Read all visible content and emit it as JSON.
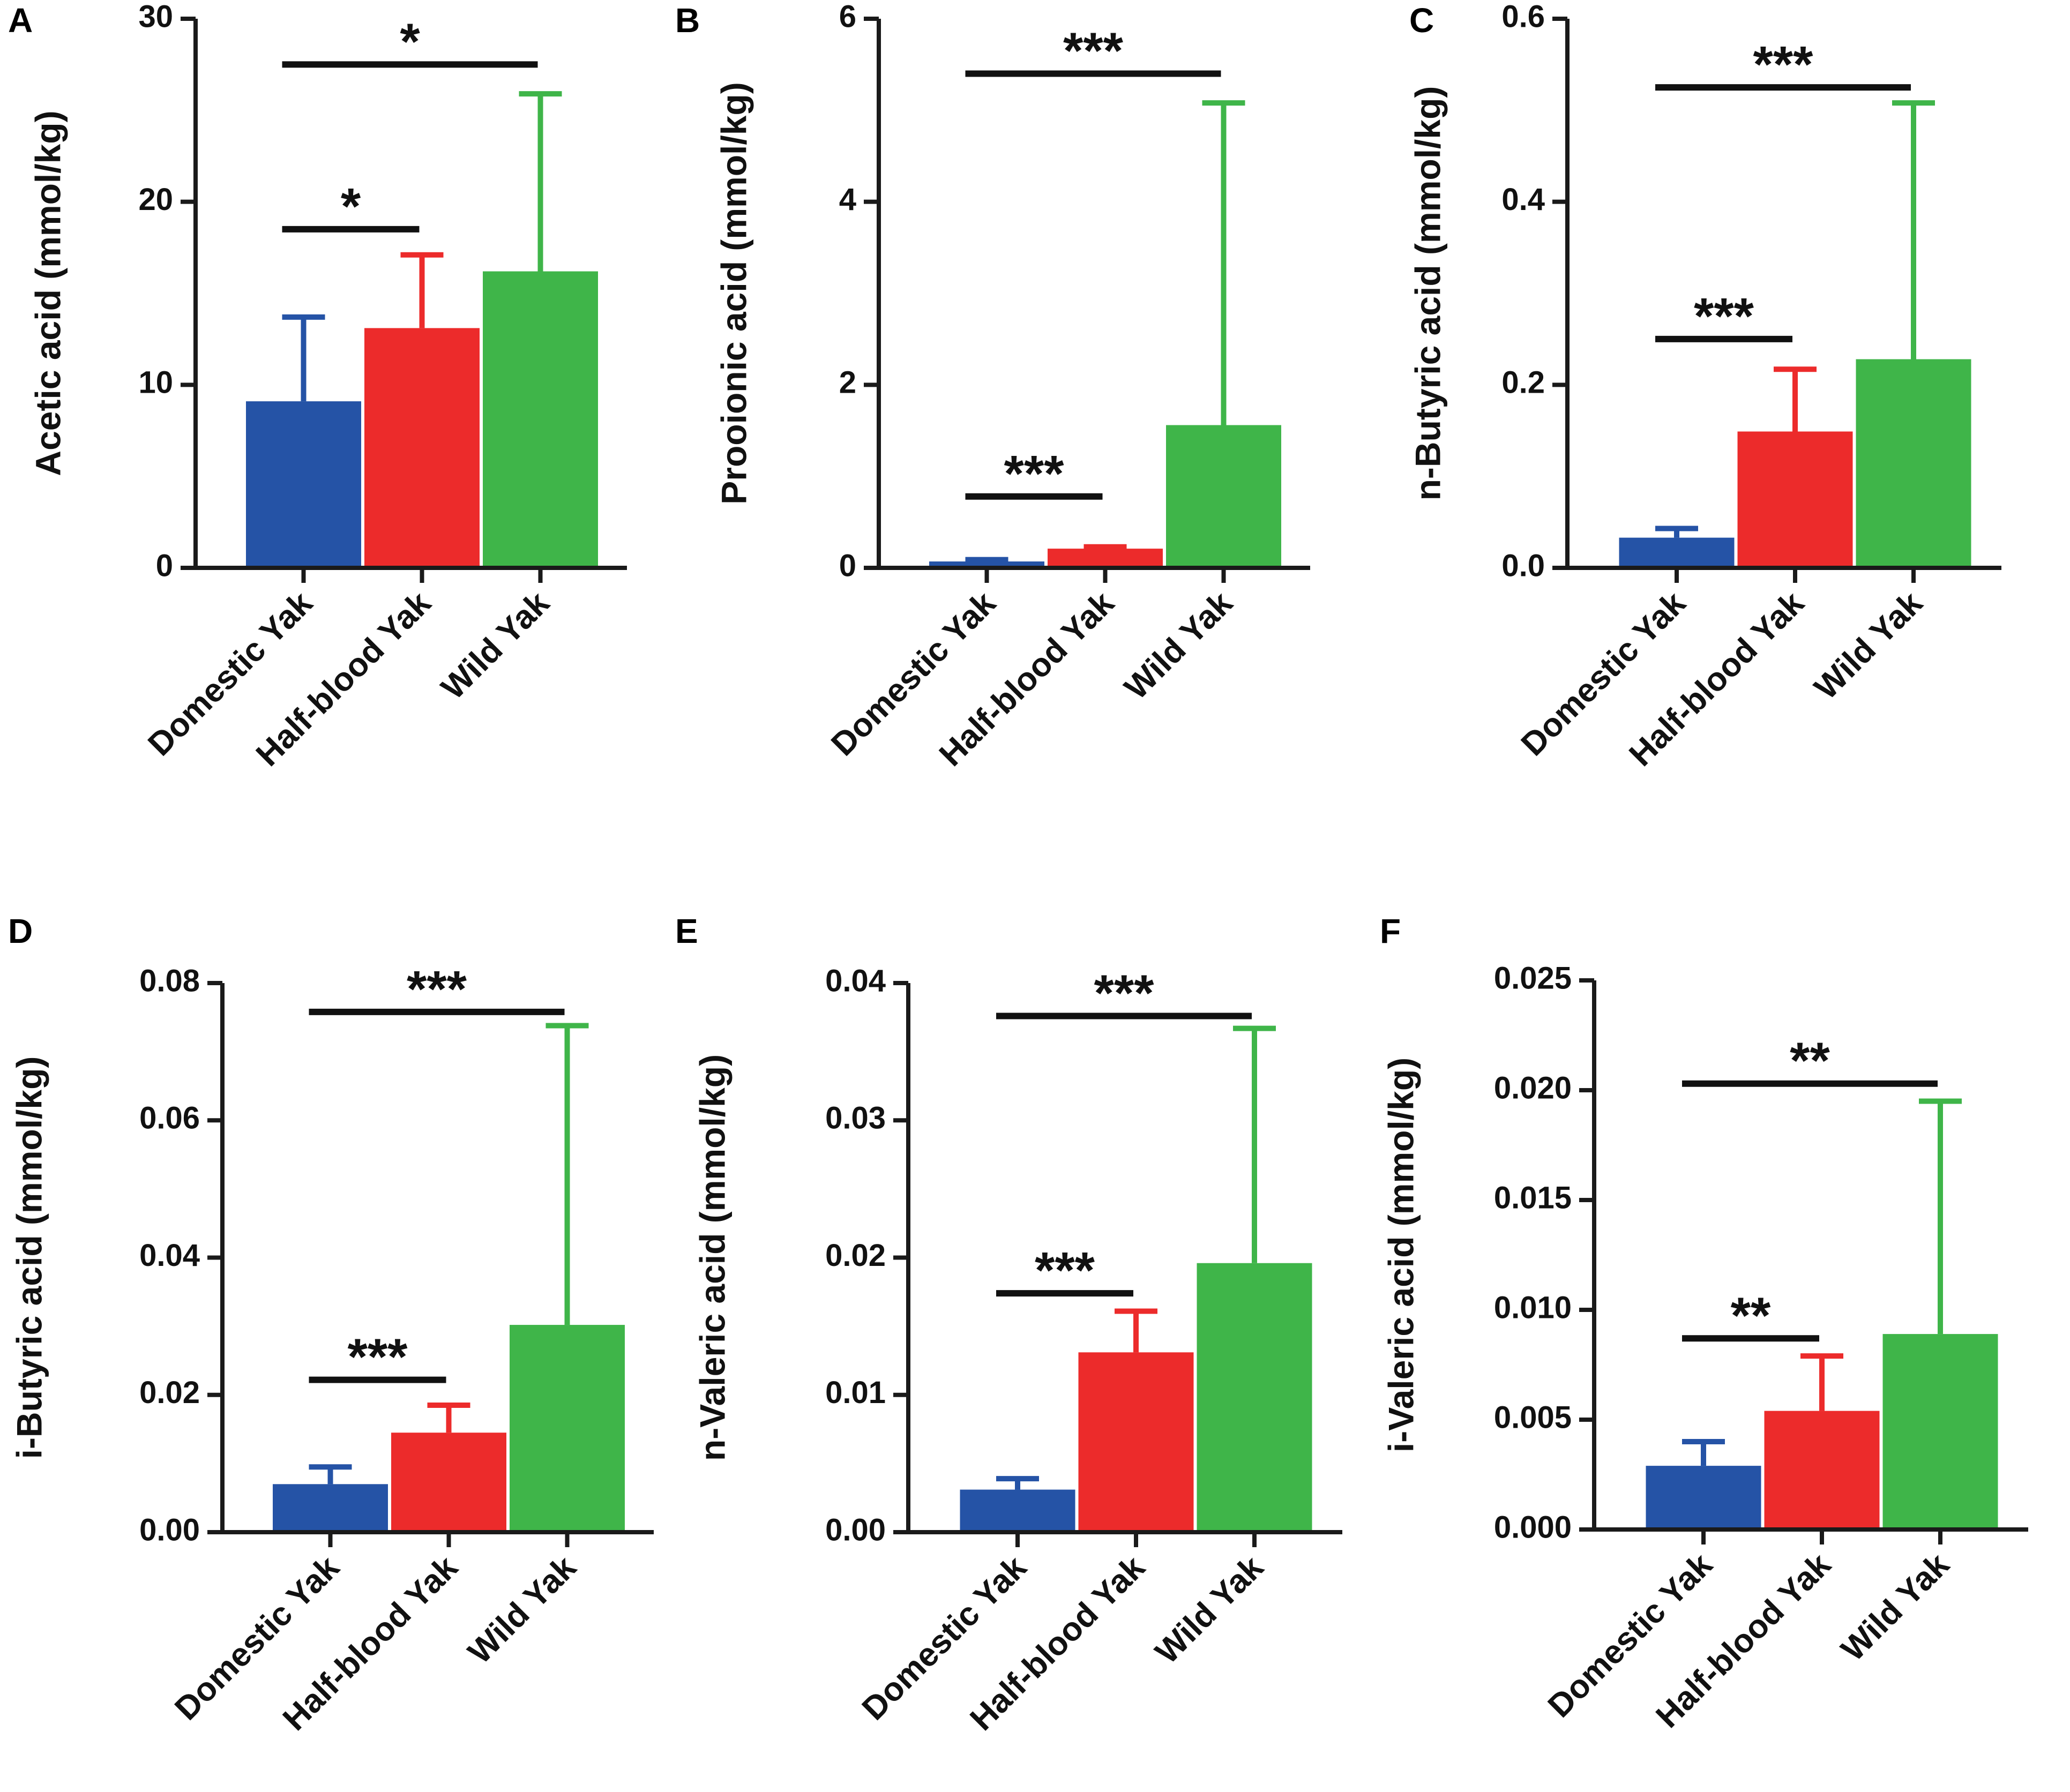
{
  "colors": {
    "domestic": "#2553a6",
    "half_blood": "#ec2b2b",
    "wild": "#3fb549",
    "axis": "#1a1a1a"
  },
  "chart_data": [
    {
      "panel": "A",
      "type": "bar",
      "ylabel": "Acetic acid (mmol/kg)",
      "categories": [
        "Domestic Yak",
        "Half-blood Yak",
        "Wild Yak"
      ],
      "values": [
        9.1,
        13.1,
        16.2
      ],
      "errors": [
        4.6,
        4.0,
        9.7
      ],
      "ylim": [
        0,
        30
      ],
      "yticks": [
        0,
        10,
        20,
        30
      ],
      "tick_labels": [
        "0",
        "10",
        "20",
        "30"
      ],
      "significance": [
        {
          "from": 0,
          "to": 1,
          "label": "*",
          "level": 18.5
        },
        {
          "from": 0,
          "to": 2,
          "label": "*",
          "level": 27.5
        }
      ]
    },
    {
      "panel": "B",
      "type": "bar",
      "ylabel": "Prooionic acid (mmol/kg)",
      "categories": [
        "Domestic Yak",
        "Half-blood Yak",
        "Wild Yak"
      ],
      "values": [
        0.07,
        0.21,
        1.56
      ],
      "errors": [
        0.02,
        0.02,
        3.52
      ],
      "ylim": [
        0,
        6
      ],
      "yticks": [
        0,
        2,
        4,
        6
      ],
      "tick_labels": [
        "0",
        "2",
        "4",
        "6"
      ],
      "significance": [
        {
          "from": 0,
          "to": 1,
          "label": "***",
          "level": 0.78
        },
        {
          "from": 0,
          "to": 2,
          "label": "***",
          "level": 5.4
        }
      ]
    },
    {
      "panel": "C",
      "type": "bar",
      "ylabel": "n-Butyric acid (mmol/kg)",
      "categories": [
        "Domestic Yak",
        "Half-blood Yak",
        "Wild Yak"
      ],
      "values": [
        0.033,
        0.149,
        0.228
      ],
      "errors": [
        0.01,
        0.068,
        0.28
      ],
      "ylim": [
        0,
        0.6
      ],
      "yticks": [
        0,
        0.2,
        0.4,
        0.6
      ],
      "tick_labels": [
        "0.0",
        "0.2",
        "0.4",
        "0.6"
      ],
      "significance": [
        {
          "from": 0,
          "to": 1,
          "label": "***",
          "level": 0.25
        },
        {
          "from": 0,
          "to": 2,
          "label": "***",
          "level": 0.525
        }
      ]
    },
    {
      "panel": "D",
      "type": "bar",
      "ylabel": "i-Butyric acid (mmol/kg)",
      "categories": [
        "Domestic Yak",
        "Half-blood Yak",
        "Wild Yak"
      ],
      "values": [
        0.007,
        0.0145,
        0.0302
      ],
      "errors": [
        0.0025,
        0.004,
        0.0436
      ],
      "ylim": [
        0,
        0.08
      ],
      "yticks": [
        0,
        0.02,
        0.04,
        0.06,
        0.08
      ],
      "tick_labels": [
        "0.00",
        "0.02",
        "0.04",
        "0.06",
        "0.08"
      ],
      "significance": [
        {
          "from": 0,
          "to": 1,
          "label": "***",
          "level": 0.0222
        },
        {
          "from": 0,
          "to": 2,
          "label": "***",
          "level": 0.0758
        }
      ]
    },
    {
      "panel": "E",
      "type": "bar",
      "ylabel": "n-Valeric acid (mmol/kg)",
      "categories": [
        "Domestic Yak",
        "Half-blood Yak",
        "Wild Yak"
      ],
      "values": [
        0.0031,
        0.0131,
        0.0196
      ],
      "errors": [
        0.0008,
        0.003,
        0.0171
      ],
      "ylim": [
        0,
        0.04
      ],
      "yticks": [
        0,
        0.01,
        0.02,
        0.03,
        0.04
      ],
      "tick_labels": [
        "0.00",
        "0.01",
        "0.02",
        "0.03",
        "0.04"
      ],
      "significance": [
        {
          "from": 0,
          "to": 1,
          "label": "***",
          "level": 0.0174
        },
        {
          "from": 0,
          "to": 2,
          "label": "***",
          "level": 0.0376
        }
      ]
    },
    {
      "panel": "F",
      "type": "bar",
      "ylabel": "i-Valeric acid (mmol/kg)",
      "categories": [
        "Domestic Yak",
        "Half-blood Yak",
        "Wild Yak"
      ],
      "values": [
        0.0029,
        0.0054,
        0.0089
      ],
      "errors": [
        0.0011,
        0.0025,
        0.0106
      ],
      "ylim": [
        0,
        0.025
      ],
      "yticks": [
        0,
        0.005,
        0.01,
        0.015,
        0.02,
        0.025
      ],
      "tick_labels": [
        "0.000",
        "0.005",
        "0.010",
        "0.015",
        "0.020",
        "0.025"
      ],
      "significance": [
        {
          "from": 0,
          "to": 1,
          "label": "**",
          "level": 0.0087
        },
        {
          "from": 0,
          "to": 2,
          "label": "**",
          "level": 0.0203
        }
      ]
    }
  ]
}
